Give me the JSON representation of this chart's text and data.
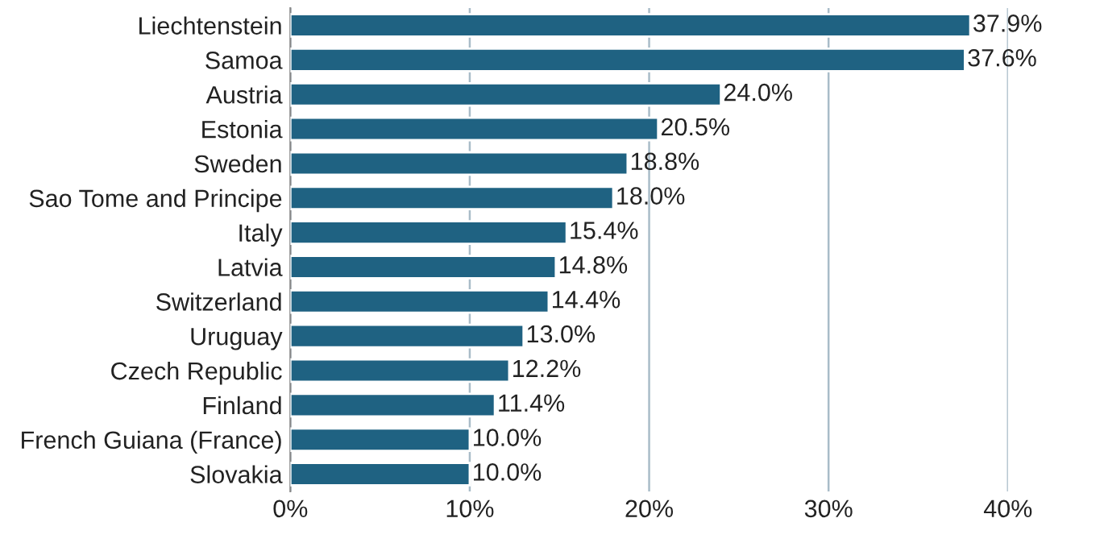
{
  "chart_data": {
    "type": "bar",
    "orientation": "horizontal",
    "categories": [
      "Liechtenstein",
      "Samoa",
      "Austria",
      "Estonia",
      "Sweden",
      "Sao Tome and Principe",
      "Italy",
      "Latvia",
      "Switzerland",
      "Uruguay",
      "Czech Republic",
      "Finland",
      "French Guiana (France)",
      "Slovakia"
    ],
    "values": [
      37.9,
      37.6,
      24.0,
      20.5,
      18.8,
      18.0,
      15.4,
      14.8,
      14.4,
      13.0,
      12.2,
      11.4,
      10.0,
      10.0
    ],
    "value_labels": [
      "37.9%",
      "37.6%",
      "24.0%",
      "20.5%",
      "18.8%",
      "18.0%",
      "15.4%",
      "14.8%",
      "14.4%",
      "13.0%",
      "12.2%",
      "11.4%",
      "10.0%",
      "10.0%"
    ],
    "color": "#1f6282",
    "xlim": [
      0,
      40
    ],
    "xticks": [
      {
        "value": 0,
        "label": "0%"
      },
      {
        "value": 10,
        "label": "10%"
      },
      {
        "value": 20,
        "label": "20%"
      },
      {
        "value": 30,
        "label": "30%"
      },
      {
        "value": 40,
        "label": "40%"
      }
    ],
    "grid": "x",
    "legend": false
  }
}
